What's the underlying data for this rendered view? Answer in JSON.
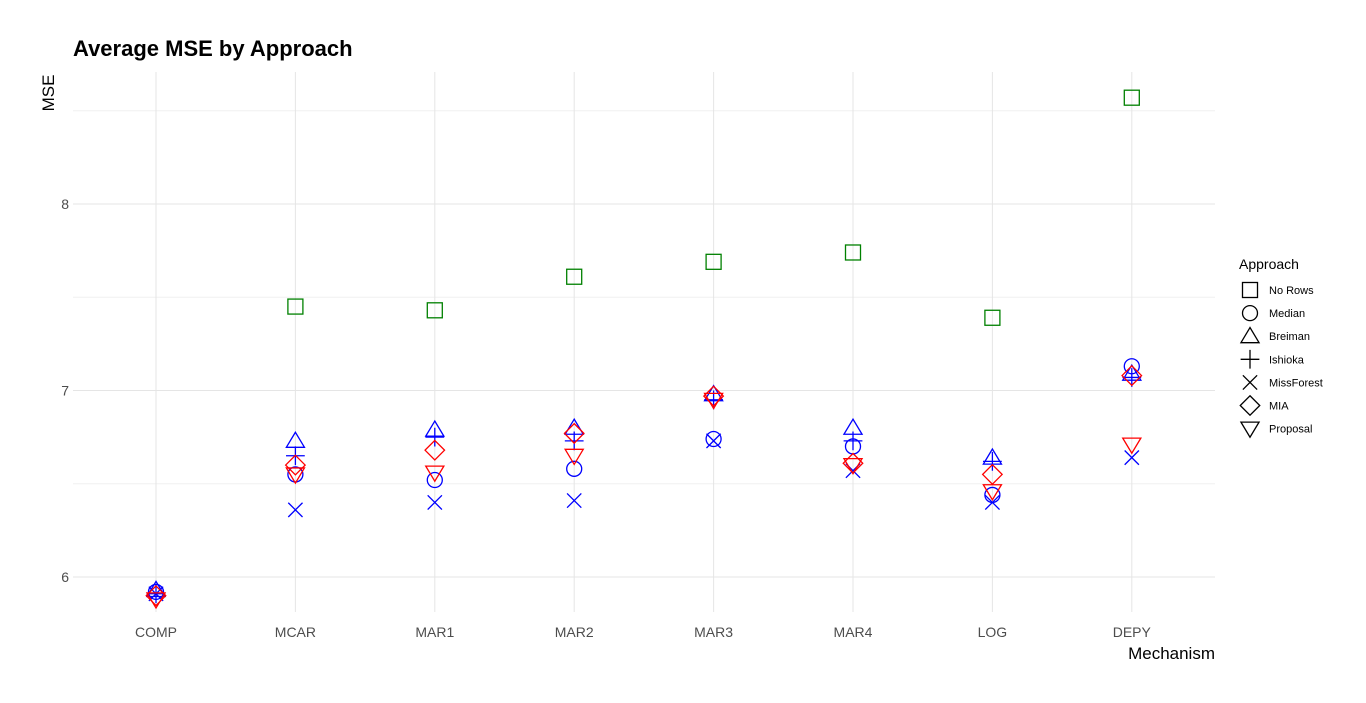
{
  "chart_data": {
    "type": "scatter",
    "title": "Average MSE by Approach",
    "xlabel": "Mechanism",
    "ylabel": "MSE",
    "categories": [
      "COMP",
      "MCAR",
      "MAR1",
      "MAR2",
      "MAR3",
      "MAR4",
      "LOG",
      "DEPY"
    ],
    "ylim": [
      5.78,
      8.72
    ],
    "yticks": [
      6,
      7,
      8
    ],
    "grid": true,
    "legend": {
      "title": "Approach",
      "placement": "right",
      "entries": [
        {
          "name": "No Rows",
          "shape": "square"
        },
        {
          "name": "Median",
          "shape": "circle"
        },
        {
          "name": "Breiman",
          "shape": "triangle"
        },
        {
          "name": "Ishioka",
          "shape": "plus"
        },
        {
          "name": "MissForest",
          "shape": "cross"
        },
        {
          "name": "MIA",
          "shape": "diamond"
        },
        {
          "name": "Proposal",
          "shape": "triangle-down"
        }
      ]
    },
    "series": [
      {
        "name": "No Rows",
        "shape": "square",
        "color": "#008000",
        "values": [
          null,
          7.45,
          7.43,
          7.61,
          7.69,
          7.74,
          7.39,
          8.57
        ]
      },
      {
        "name": "Median",
        "shape": "circle",
        "color": "#0000ff",
        "values": [
          5.92,
          6.55,
          6.52,
          6.58,
          6.74,
          6.7,
          6.44,
          7.13
        ]
      },
      {
        "name": "Breiman",
        "shape": "triangle",
        "color": "#0000ff",
        "values": [
          5.93,
          6.73,
          6.79,
          6.8,
          6.98,
          6.8,
          6.64,
          7.09
        ]
      },
      {
        "name": "Ishioka",
        "shape": "plus",
        "color": "#0000ff",
        "values": [
          5.91,
          6.65,
          6.75,
          6.73,
          6.95,
          6.73,
          6.62,
          7.07
        ]
      },
      {
        "name": "MissForest",
        "shape": "cross",
        "color": "#0000ff",
        "values": [
          5.91,
          6.36,
          6.4,
          6.41,
          6.73,
          6.57,
          6.4,
          6.64
        ]
      },
      {
        "name": "MIA",
        "shape": "diamond",
        "color": "#ff0000",
        "values": [
          5.9,
          6.6,
          6.68,
          6.77,
          6.97,
          6.61,
          6.55,
          7.08
        ]
      },
      {
        "name": "Proposal",
        "shape": "triangle-down",
        "color": "#ff0000",
        "values": [
          5.88,
          6.55,
          6.56,
          6.65,
          6.95,
          6.6,
          6.46,
          6.71
        ]
      }
    ]
  }
}
